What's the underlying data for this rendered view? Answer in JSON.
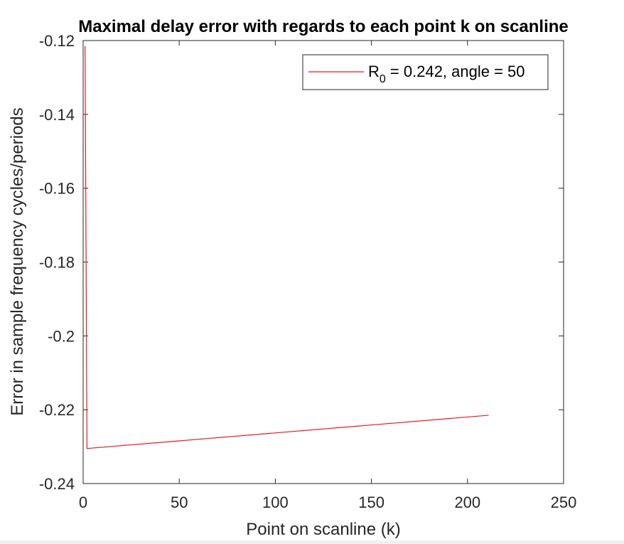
{
  "chart_data": {
    "type": "line",
    "title": "Maximal delay error with regards to each point k on scanline",
    "xlabel": "Point on scanline (k)",
    "ylabel": "Error in sample frequency cycles/periods",
    "xlim": [
      0,
      250
    ],
    "ylim": [
      -0.24,
      -0.12
    ],
    "xticks": [
      "0",
      "50",
      "100",
      "150",
      "200",
      "250"
    ],
    "yticks": [
      "-0.12",
      "-0.14",
      "-0.16",
      "-0.18",
      "-0.2",
      "-0.22",
      "-0.24"
    ],
    "grid": false,
    "legend_position": "top-right",
    "legend": {
      "symbol": "R",
      "subscript": "0",
      "rest": " = 0.242, angle = 50"
    },
    "series": [
      {
        "name": "R0 = 0.242, angle = 50",
        "color": "#e41a1c",
        "x": [
          1,
          2,
          211
        ],
        "y": [
          -0.1215,
          -0.2305,
          -0.2215
        ]
      }
    ]
  }
}
